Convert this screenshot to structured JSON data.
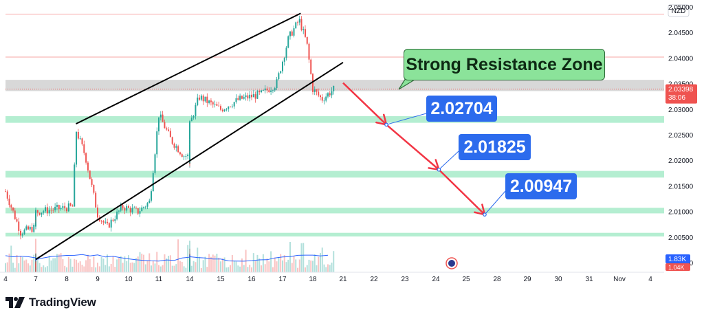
{
  "currency": "NZD",
  "chart_data": {
    "type": "candlestick",
    "symbol_currency": "NZD",
    "y_axis": {
      "range": [
        1.9982,
        2.0514
      ],
      "ticks": [
        "2.05000",
        "2.04500",
        "2.04000",
        "2.03500",
        "2.03000",
        "2.02500",
        "2.02000",
        "2.01500",
        "2.01000",
        "2.00500",
        "2.00000"
      ],
      "tick_values": [
        2.05,
        2.045,
        2.04,
        2.035,
        2.03,
        2.025,
        2.02,
        2.015,
        2.01,
        2.005,
        2.0
      ]
    },
    "x_axis": {
      "ticks": [
        "4",
        "7",
        "8",
        "9",
        "10",
        "11",
        "14",
        "15",
        "16",
        "17",
        "18",
        "21",
        "22",
        "23",
        "24",
        "25",
        "28",
        "29",
        "30",
        "31",
        "Nov",
        "4"
      ]
    },
    "current_price": "2.03398",
    "countdown": "38:06",
    "volume_label": "1.83K",
    "volume_label_2": "1.04K",
    "resistance_lines": [
      2.04865,
      2.04025
    ],
    "resistance_zone": [
      2.0336,
      2.0358
    ],
    "support_zones": [
      [
        2.0274,
        2.0287
      ],
      [
        2.0167,
        2.018
      ],
      [
        2.0097,
        2.0108
      ],
      [
        2.0052,
        2.0059
      ]
    ],
    "channel": {
      "upper": [
        [
          8.3,
          2.0272
        ],
        [
          17.6,
          2.0488
        ]
      ],
      "lower": [
        [
          6.5,
          2.0007
        ],
        [
          20.5,
          2.0392
        ]
      ]
    },
    "projection": {
      "points": [
        [
          19.6,
          2.0352
        ],
        [
          22.4,
          2.02704
        ],
        [
          24.1,
          2.01825
        ],
        [
          25.6,
          2.00947
        ]
      ],
      "targets": [
        "2.02704",
        "2.01825",
        "2.00947"
      ]
    },
    "annotation": "Strong Resistance Zone",
    "colors": {
      "up": "#26a69a",
      "down": "#ef5350",
      "zone": "#9be8c1",
      "resistance": "#d8d8d8",
      "channel": "#000000",
      "projection": "#f23645",
      "label": "#2c6bed",
      "callout": "#8be39a"
    }
  },
  "branding": {
    "name": "TradingView"
  }
}
